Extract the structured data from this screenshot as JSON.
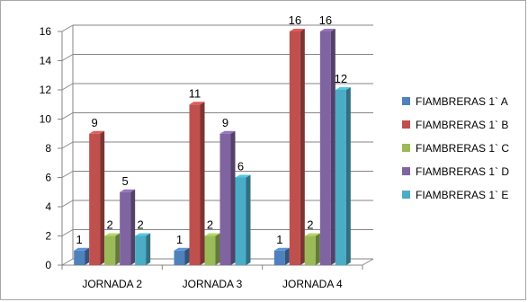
{
  "chart_data": {
    "type": "bar",
    "categories": [
      "JORNADA 2",
      "JORNADA 3",
      "JORNADA 4"
    ],
    "series": [
      {
        "name": "FIAMBRERAS 1` A",
        "values": [
          1,
          1,
          1
        ],
        "color": "#4f81bd"
      },
      {
        "name": "FIAMBRERAS 1` B",
        "values": [
          9,
          11,
          16
        ],
        "color": "#c0504d"
      },
      {
        "name": "FIAMBRERAS 1` C",
        "values": [
          2,
          2,
          2
        ],
        "color": "#9bbb59"
      },
      {
        "name": "FIAMBRERAS 1` D",
        "values": [
          5,
          9,
          16
        ],
        "color": "#8064a2"
      },
      {
        "name": "FIAMBRERAS 1` E",
        "values": [
          2,
          6,
          12
        ],
        "color": "#4bacc6"
      }
    ],
    "yticks": [
      0,
      2,
      4,
      6,
      8,
      10,
      12,
      14,
      16
    ],
    "ylim": [
      0,
      16
    ],
    "grid": true,
    "legend_position": "right",
    "style": "3d-clustered-column"
  }
}
